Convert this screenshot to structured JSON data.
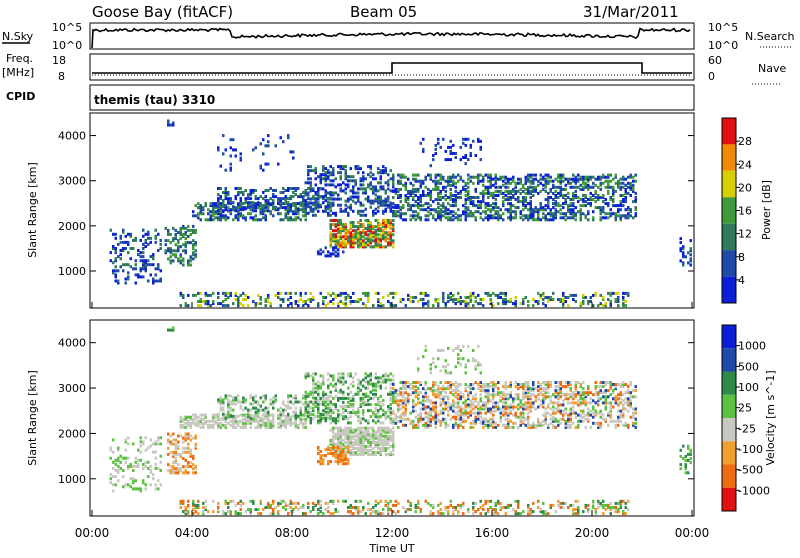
{
  "header": {
    "station": "Goose Bay (fitACF)",
    "beam": "Beam 05",
    "date": "31/Mar/2011"
  },
  "top_panels": {
    "nsky_label": "N.Sky",
    "nsky_ticks": [
      "10^5",
      "10^0"
    ],
    "nsearch_label": "N.Search",
    "nsearch_ticks": [
      "10^5",
      "10^0"
    ],
    "freq_label": "Freq.",
    "freq_unit": "[MHz]",
    "freq_ticks": [
      "18",
      "8"
    ],
    "nave_label": "Nave",
    "nave_ticks": [
      "60",
      "0"
    ],
    "cpid_label": "CPID",
    "cpid_value": "themis (tau) 3310"
  },
  "chart_data": [
    {
      "type": "heatmap",
      "name": "power",
      "ylabel": "Slant Range [km]",
      "yticks": [
        "4000",
        "3000",
        "2000",
        "1000"
      ],
      "colorbar_label": "Power [dB]",
      "colorbar_ticks": [
        "28",
        "24",
        "20",
        "16",
        "12",
        "8",
        "4"
      ],
      "colors": [
        "#0a1fd6",
        "#1f4aa8",
        "#2e7a5a",
        "#3f9a3a",
        "#d7d000",
        "#f08a00",
        "#e01010"
      ],
      "x_range_hours": [
        0,
        24
      ],
      "y_range_km": [
        180,
        4500
      ],
      "regions": [
        {
          "t0": 0.7,
          "t1": 2.8,
          "r0": 700,
          "r1": 1900,
          "density": 0.25,
          "levels": [
            0,
            1,
            2
          ]
        },
        {
          "t0": 2.9,
          "t1": 4.2,
          "r0": 1100,
          "r1": 2000,
          "density": 0.35,
          "levels": [
            1,
            2,
            3
          ]
        },
        {
          "t0": 3.0,
          "t1": 3.3,
          "r0": 4200,
          "r1": 4300,
          "density": 0.6,
          "levels": [
            0,
            1
          ]
        },
        {
          "t0": 4.0,
          "t1": 8.5,
          "r0": 2100,
          "r1": 2500,
          "density": 0.5,
          "levels": [
            0,
            1,
            2,
            3
          ]
        },
        {
          "t0": 5.0,
          "t1": 9.5,
          "r0": 2300,
          "r1": 2800,
          "density": 0.4,
          "levels": [
            0,
            1,
            2
          ]
        },
        {
          "t0": 8.5,
          "t1": 12.0,
          "r0": 2200,
          "r1": 3300,
          "density": 0.35,
          "levels": [
            0,
            1,
            2
          ]
        },
        {
          "t0": 9.5,
          "t1": 12.0,
          "r0": 1500,
          "r1": 2100,
          "density": 0.7,
          "levels": [
            2,
            3,
            4,
            5,
            6
          ]
        },
        {
          "t0": 9.0,
          "t1": 10.0,
          "r0": 1300,
          "r1": 1500,
          "density": 0.4,
          "levels": [
            0,
            1
          ]
        },
        {
          "t0": 12.0,
          "t1": 21.8,
          "r0": 2100,
          "r1": 3100,
          "density": 0.45,
          "levels": [
            0,
            1,
            2,
            3
          ]
        },
        {
          "t0": 13.0,
          "t1": 15.5,
          "r0": 3300,
          "r1": 3900,
          "density": 0.15,
          "levels": [
            0,
            1
          ]
        },
        {
          "t0": 5.0,
          "t1": 8.0,
          "r0": 3200,
          "r1": 4000,
          "density": 0.05,
          "levels": [
            0,
            1
          ]
        },
        {
          "t0": 3.5,
          "t1": 21.5,
          "r0": 200,
          "r1": 500,
          "density": 0.3,
          "levels": [
            0,
            1,
            2,
            3,
            4
          ]
        },
        {
          "t0": 23.5,
          "t1": 24.0,
          "r0": 1100,
          "r1": 1700,
          "density": 0.3,
          "levels": [
            0,
            1,
            2
          ]
        }
      ]
    },
    {
      "type": "heatmap",
      "name": "velocity",
      "ylabel": "Slant Range [km]",
      "yticks": [
        "4000",
        "3000",
        "2000",
        "1000"
      ],
      "colorbar_label": "Velocity [m s^-1]",
      "colorbar_ticks": [
        "1000",
        "500",
        "100",
        "25",
        "-25",
        "-100",
        "-500",
        "-1000"
      ],
      "colors": [
        "#e01010",
        "#f06a10",
        "#f0a030",
        "#c8c8c0",
        "#5cc040",
        "#2f8a4a",
        "#1f4aa8",
        "#0a1fd6"
      ],
      "x_range_hours": [
        0,
        24
      ],
      "y_range_km": [
        180,
        4500
      ],
      "regions": [
        {
          "t0": 0.7,
          "t1": 2.8,
          "r0": 700,
          "r1": 1900,
          "density": 0.2,
          "levels": [
            3,
            4
          ]
        },
        {
          "t0": 3.0,
          "t1": 4.2,
          "r0": 1100,
          "r1": 2000,
          "density": 0.4,
          "levels": [
            1,
            2,
            3
          ]
        },
        {
          "t0": 3.0,
          "t1": 3.3,
          "r0": 4200,
          "r1": 4300,
          "density": 0.6,
          "levels": [
            4,
            5
          ]
        },
        {
          "t0": 3.5,
          "t1": 8.5,
          "r0": 2100,
          "r1": 2400,
          "density": 0.6,
          "levels": [
            3,
            3,
            3,
            4
          ]
        },
        {
          "t0": 5.0,
          "t1": 9.5,
          "r0": 2300,
          "r1": 2800,
          "density": 0.4,
          "levels": [
            3,
            3,
            4,
            5
          ]
        },
        {
          "t0": 8.5,
          "t1": 12.0,
          "r0": 2200,
          "r1": 3300,
          "density": 0.35,
          "levels": [
            3,
            4,
            5
          ]
        },
        {
          "t0": 9.5,
          "t1": 12.0,
          "r0": 1500,
          "r1": 2100,
          "density": 0.75,
          "levels": [
            3,
            3,
            3,
            4
          ]
        },
        {
          "t0": 9.0,
          "t1": 10.2,
          "r0": 1300,
          "r1": 1700,
          "density": 0.5,
          "levels": [
            1,
            2
          ]
        },
        {
          "t0": 12.0,
          "t1": 21.8,
          "r0": 2100,
          "r1": 3100,
          "density": 0.45,
          "levels": [
            3,
            3,
            3,
            1,
            2,
            4,
            6
          ]
        },
        {
          "t0": 13.0,
          "t1": 15.5,
          "r0": 3300,
          "r1": 3900,
          "density": 0.15,
          "levels": [
            3,
            4
          ]
        },
        {
          "t0": 3.5,
          "t1": 21.5,
          "r0": 200,
          "r1": 500,
          "density": 0.3,
          "levels": [
            2,
            3,
            4,
            5,
            1
          ]
        },
        {
          "t0": 23.5,
          "t1": 24.0,
          "r0": 1100,
          "r1": 1700,
          "density": 0.3,
          "levels": [
            4,
            5
          ]
        }
      ]
    }
  ],
  "x_axis": {
    "label": "Time UT",
    "ticks": [
      "00:00",
      "04:00",
      "08:00",
      "12:00",
      "16:00",
      "20:00",
      "00:00"
    ]
  }
}
